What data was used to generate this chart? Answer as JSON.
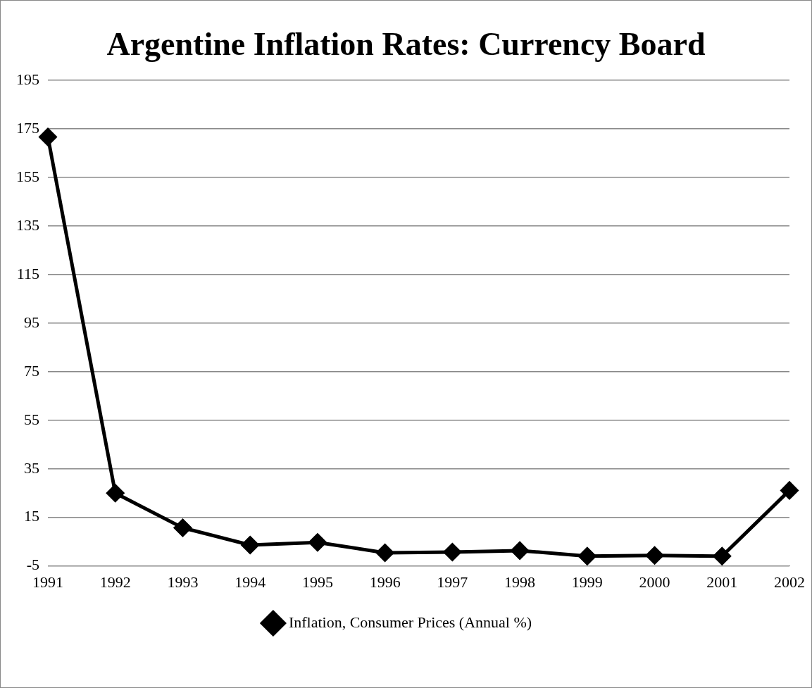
{
  "chart_data": {
    "type": "line",
    "title": "Argentine Inflation Rates: Currency Board",
    "categories": [
      "1991",
      "1992",
      "1993",
      "1994",
      "1995",
      "1996",
      "1997",
      "1998",
      "1999",
      "2000",
      "2001",
      "2002"
    ],
    "series": [
      {
        "name": "Inflation, Consumer Prices (Annual %)",
        "color": "#000000",
        "values": [
          171.7,
          25.0,
          10.7,
          3.6,
          4.7,
          0.4,
          0.7,
          1.3,
          -1.0,
          -0.7,
          -1.0,
          26.1
        ]
      }
    ],
    "ylim": [
      -5,
      195
    ],
    "yticks": [
      -5,
      15,
      35,
      55,
      75,
      95,
      115,
      135,
      155,
      175,
      195
    ],
    "grid": "y",
    "legend": "bottom",
    "marker": "diamond",
    "line_style": "solid"
  }
}
